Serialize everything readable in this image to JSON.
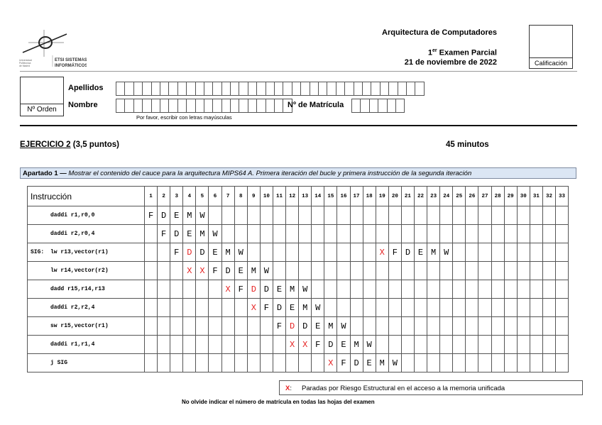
{
  "header": {
    "logo_text": [
      "Universidad Politécnica de Madrid",
      "ETSI SISTEMAS INFORMÁTICOS"
    ],
    "course": "Arquitectura de Computadores",
    "exam_sup": "er",
    "exam_num": "1",
    "exam": "Examen Parcial",
    "date": "21 de noviembre de 2022",
    "grade_label": "Calificación"
  },
  "form": {
    "order_label": "Nº Orden",
    "surname_label": "Apellidos",
    "name_label": "Nombre",
    "id_label": "Nº de Matrícula",
    "hint": "Por favor, escribir con letras mayúsculas"
  },
  "exercise": {
    "title": "EJERCICIO 2",
    "points": "(3,5 puntos)",
    "time": "45 minutos"
  },
  "section": {
    "label": "Apartado 1 —",
    "text": "Mostrar el contenido del cauce para la arquitectura MIPS64 A. Primera iteración del bucle y primera instrucción de la segunda iteración"
  },
  "pipeline": {
    "header": "Instrucción",
    "cycles": 33,
    "rows": [
      {
        "label": "",
        "instr": "daddi r1,r0,0",
        "cells": [
          [
            1,
            "F"
          ],
          [
            2,
            "D"
          ],
          [
            3,
            "E"
          ],
          [
            4,
            "M"
          ],
          [
            5,
            "W"
          ]
        ]
      },
      {
        "label": "",
        "instr": "daddi r2,r0,4",
        "cells": [
          [
            2,
            "F"
          ],
          [
            3,
            "D"
          ],
          [
            4,
            "E"
          ],
          [
            5,
            "M"
          ],
          [
            6,
            "W"
          ]
        ]
      },
      {
        "label": "SIG:",
        "instr": "lw r13,vector(r1)",
        "cells": [
          [
            3,
            "F"
          ],
          [
            4,
            "D",
            true
          ],
          [
            5,
            "D"
          ],
          [
            6,
            "E"
          ],
          [
            7,
            "M"
          ],
          [
            8,
            "W"
          ],
          [
            19,
            "X",
            true
          ],
          [
            20,
            "F"
          ],
          [
            21,
            "D"
          ],
          [
            22,
            "E"
          ],
          [
            23,
            "M"
          ],
          [
            24,
            "W"
          ]
        ]
      },
      {
        "label": "",
        "instr": "lw r14,vector(r2)",
        "cells": [
          [
            4,
            "X",
            true
          ],
          [
            5,
            "X",
            true
          ],
          [
            6,
            "F"
          ],
          [
            7,
            "D"
          ],
          [
            8,
            "E"
          ],
          [
            9,
            "M"
          ],
          [
            10,
            "W"
          ]
        ]
      },
      {
        "label": "",
        "instr": "dadd r15,r14,r13",
        "cells": [
          [
            7,
            "X",
            true
          ],
          [
            8,
            "F"
          ],
          [
            9,
            "D",
            true
          ],
          [
            10,
            "D"
          ],
          [
            11,
            "E"
          ],
          [
            12,
            "M"
          ],
          [
            13,
            "W"
          ]
        ]
      },
      {
        "label": "",
        "instr": "daddi r2,r2,4",
        "cells": [
          [
            9,
            "X",
            true
          ],
          [
            10,
            "F"
          ],
          [
            11,
            "D"
          ],
          [
            12,
            "E"
          ],
          [
            13,
            "M"
          ],
          [
            14,
            "W"
          ]
        ]
      },
      {
        "label": "",
        "instr": "sw r15,vector(r1)",
        "cells": [
          [
            11,
            "F"
          ],
          [
            12,
            "D",
            true
          ],
          [
            13,
            "D"
          ],
          [
            14,
            "E"
          ],
          [
            15,
            "M"
          ],
          [
            16,
            "W"
          ]
        ]
      },
      {
        "label": "",
        "instr": "daddi r1,r1,4",
        "cells": [
          [
            12,
            "X",
            true
          ],
          [
            13,
            "X",
            true
          ],
          [
            14,
            "F"
          ],
          [
            15,
            "D"
          ],
          [
            16,
            "E"
          ],
          [
            17,
            "M"
          ],
          [
            18,
            "W"
          ]
        ]
      },
      {
        "label": "",
        "instr": "j SIG",
        "cells": [
          [
            15,
            "X",
            true
          ],
          [
            16,
            "F"
          ],
          [
            17,
            "D"
          ],
          [
            18,
            "E"
          ],
          [
            19,
            "M"
          ],
          [
            20,
            "W"
          ]
        ]
      }
    ],
    "stall_color": "#e62222"
  },
  "legend": {
    "symbol": "X",
    "sep": ":",
    "text": "Paradas por Riesgo Estructural en el acceso a la memoria unificada"
  },
  "footer": "No olvide indicar el número de matrícula en todas las hojas del examen"
}
